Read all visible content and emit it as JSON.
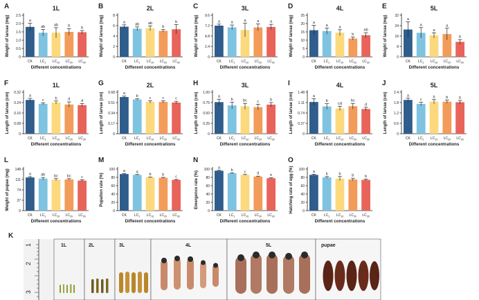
{
  "figure": {
    "xlabel": "Different concentrations",
    "categories": [
      "CK",
      "LC1",
      "LC10",
      "LC20",
      "LC30"
    ],
    "colors": [
      "#2f5d8c",
      "#7ec3e0",
      "#fbd97c",
      "#f39c5a",
      "#e8645a"
    ]
  },
  "chart_data": [
    {
      "id": "A",
      "type": "bar",
      "title": "1L",
      "ylabel": "Weight of larvae (mg)",
      "ylim": [
        0,
        2.5
      ],
      "ticks": [
        "0",
        "0.5",
        "1.0",
        "1.5",
        "2.0",
        "2.5"
      ],
      "values": [
        1.8,
        1.45,
        1.45,
        1.5,
        1.48
      ],
      "errors": [
        0.22,
        0.2,
        0.3,
        0.2,
        0.1
      ],
      "letters": [
        "a",
        "ab",
        "ab",
        "b",
        "b"
      ]
    },
    {
      "id": "B",
      "type": "bar",
      "title": "2L",
      "ylabel": "Weight of larvae (mg)",
      "ylim": [
        0,
        8
      ],
      "ticks": [
        "0",
        "2",
        "4",
        "6",
        "8"
      ],
      "values": [
        5.8,
        5.4,
        5.5,
        5.0,
        5.3
      ],
      "errors": [
        0.35,
        0.35,
        0.45,
        0.25,
        0.9
      ],
      "letters": [
        "a",
        "ab",
        "ab",
        "b",
        "b"
      ]
    },
    {
      "id": "C",
      "type": "bar",
      "title": "3L",
      "ylabel": "Weight of larvae (mg)",
      "ylim": [
        0,
        9.6
      ],
      "ticks": [
        "0",
        "2.4",
        "4.8",
        "7.2",
        "9.6"
      ],
      "values": [
        7.2,
        6.8,
        6.2,
        6.8,
        6.9
      ],
      "errors": [
        0.35,
        0.55,
        1.6,
        0.8,
        0.6
      ],
      "letters": [
        "a",
        "a",
        "a",
        "a",
        "a"
      ]
    },
    {
      "id": "D",
      "type": "bar",
      "title": "4L",
      "ylabel": "Weight of larvae (mg)",
      "ylim": [
        0,
        25
      ],
      "ticks": [
        "0",
        "5",
        "10",
        "15",
        "20",
        "25"
      ],
      "values": [
        16.0,
        15.5,
        14.5,
        11.0,
        13.0
      ],
      "errors": [
        3.0,
        1.8,
        1.8,
        0.9,
        1.5
      ],
      "letters": [
        "a",
        "a",
        "a",
        "b",
        "ab"
      ]
    },
    {
      "id": "E",
      "type": "bar",
      "title": "5L",
      "ylabel": "Weight of larvae (mg)",
      "ylim": [
        0,
        32
      ],
      "ticks": [
        "0",
        "8",
        "16",
        "24",
        "32"
      ],
      "values": [
        21.0,
        18.5,
        16.5,
        17.5,
        11.5
      ],
      "errors": [
        6.0,
        4.0,
        2.0,
        4.5,
        1.8
      ],
      "letters": [
        "a",
        "a",
        "a",
        "a",
        "b"
      ]
    },
    {
      "id": "F",
      "type": "bar",
      "title": "1L",
      "ylabel": "Length of larvae (cm)",
      "ylim": [
        0,
        0.32
      ],
      "ticks": [
        "0",
        "0.08",
        "0.16",
        "0.24",
        "0.32"
      ],
      "values": [
        0.26,
        0.23,
        0.24,
        0.225,
        0.22
      ],
      "errors": [
        0.012,
        0.008,
        0.012,
        0.02,
        0.012
      ],
      "letters": [
        "a",
        "c",
        "b",
        "d",
        "d"
      ]
    },
    {
      "id": "G",
      "type": "bar",
      "title": "2L",
      "ylabel": "Length of larvae (cm)",
      "ylim": [
        0,
        0.68
      ],
      "ticks": [
        "0",
        "0.17",
        "0.34",
        "0.51",
        "0.68"
      ],
      "values": [
        0.6,
        0.56,
        0.52,
        0.52,
        0.51
      ],
      "errors": [
        0.015,
        0.012,
        0.02,
        0.02,
        0.02
      ],
      "letters": [
        "a",
        "b",
        "c",
        "c",
        "c"
      ]
    },
    {
      "id": "H",
      "type": "bar",
      "title": "3L",
      "ylabel": "Length of larvae (cm)",
      "ylim": [
        0,
        1.0
      ],
      "ticks": [
        "0",
        "0.25",
        "0.50",
        "0.75",
        "1.00"
      ],
      "values": [
        0.76,
        0.68,
        0.66,
        0.64,
        0.7
      ],
      "errors": [
        0.07,
        0.08,
        0.07,
        0.07,
        0.05
      ],
      "letters": [
        "a",
        "b",
        "bc",
        "c",
        "b"
      ]
    },
    {
      "id": "I",
      "type": "bar",
      "title": "4L",
      "ylabel": "Length of larvae (cm)",
      "ylim": [
        0,
        1.48
      ],
      "ticks": [
        "0",
        "0.37",
        "0.74",
        "1.11",
        "1.48"
      ],
      "values": [
        1.13,
        0.97,
        0.9,
        0.98,
        0.88
      ],
      "errors": [
        0.12,
        0.1,
        0.08,
        0.1,
        0.06
      ],
      "letters": [
        "a",
        "b",
        "cd",
        "bc",
        "d"
      ]
    },
    {
      "id": "J",
      "type": "bar",
      "title": "5L",
      "ylabel": "Length of larvae (cm)",
      "ylim": [
        0,
        2.4
      ],
      "ticks": [
        "0",
        "0.6",
        "1.2",
        "1.8",
        "2.4"
      ],
      "values": [
        1.95,
        1.72,
        1.85,
        1.85,
        1.82
      ],
      "errors": [
        0.1,
        0.1,
        0.12,
        0.1,
        0.1
      ],
      "letters": [
        "a",
        "c",
        "b",
        "b",
        "b"
      ]
    },
    {
      "id": "L",
      "type": "bar",
      "title": "",
      "ylabel": "Weight of pupae (mg)",
      "ylim": [
        0,
        148
      ],
      "ticks": [
        "0",
        "37",
        "74",
        "111",
        "148"
      ],
      "values": [
        118,
        114,
        110,
        111,
        107
      ],
      "errors": [
        3,
        4,
        4,
        3,
        3
      ],
      "letters": [
        "a",
        "ab",
        "bc",
        "bc",
        "c"
      ]
    },
    {
      "id": "M",
      "type": "bar",
      "title": "",
      "ylabel": "Pupation rate (%)",
      "ylim": [
        0,
        100
      ],
      "ticks": [
        "0",
        "20",
        "40",
        "60",
        "80",
        "100"
      ],
      "values": [
        88,
        86,
        80,
        79,
        74
      ],
      "errors": [
        1.0,
        1.0,
        1.0,
        1.0,
        1.0
      ],
      "letters": [
        "a",
        "a",
        "b",
        "b",
        "c"
      ]
    },
    {
      "id": "N",
      "type": "bar",
      "title": "",
      "ylabel": "Emergence rate (%)",
      "ylim": [
        0,
        100
      ],
      "ticks": [
        "0",
        "20",
        "40",
        "60",
        "80",
        "100"
      ],
      "values": [
        96,
        90,
        86,
        82,
        78
      ],
      "errors": [
        1.0,
        1.0,
        1.0,
        1.0,
        1.0
      ],
      "letters": [
        "a",
        "b",
        "c",
        "d",
        "e"
      ]
    },
    {
      "id": "O",
      "type": "bar",
      "title": "",
      "ylabel": "Hatching rate of egg (%)",
      "ylim": [
        0,
        100
      ],
      "ticks": [
        "0",
        "20",
        "40",
        "60",
        "80",
        "100"
      ],
      "values": [
        86,
        80,
        77,
        75,
        74
      ],
      "errors": [
        1.5,
        2.0,
        5.0,
        3.0,
        2.0
      ],
      "letters": [
        "a",
        "b",
        "b",
        "b",
        "b"
      ]
    }
  ],
  "photo": {
    "label": "K",
    "scale": [
      "1",
      "2",
      "3"
    ],
    "panels": [
      "1L",
      "2L",
      "3L",
      "4L",
      "5L",
      "pupae"
    ]
  }
}
